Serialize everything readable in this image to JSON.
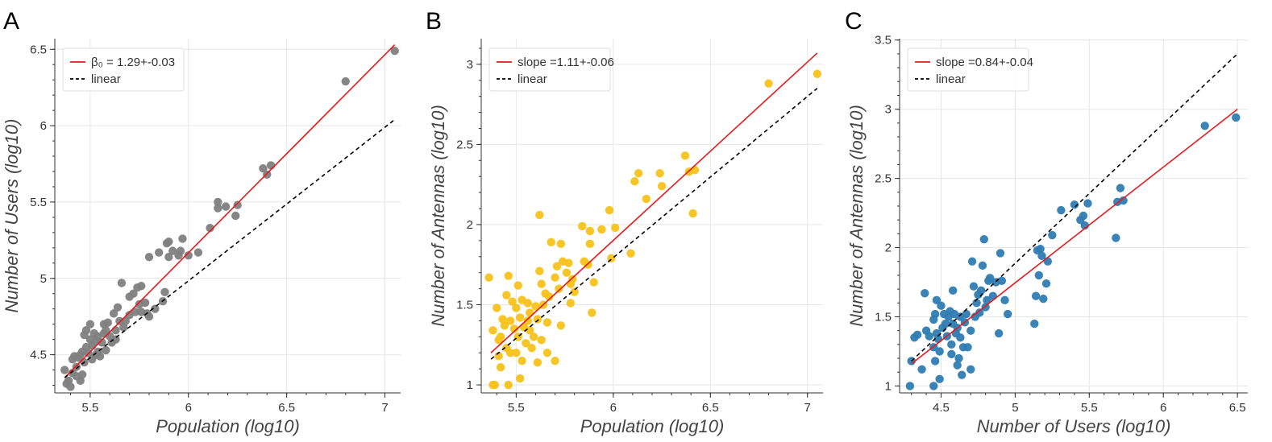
{
  "chart_data": [
    {
      "panel_label": "A",
      "type": "scatter",
      "xlabel": "Population (log10)",
      "ylabel": "Number of Users (log10)",
      "xlim": [
        5.32,
        7.08
      ],
      "ylim": [
        4.25,
        6.57
      ],
      "xticks": [
        5.5,
        6,
        6.5,
        7
      ],
      "xtick_labels": [
        "5.5",
        "6",
        "6.5",
        "7"
      ],
      "yticks": [
        4.5,
        5,
        5.5,
        6,
        6.5
      ],
      "ytick_labels": [
        "4.5",
        "5",
        "5.5",
        "6",
        "6.5"
      ],
      "point_color": "#7f7f7f",
      "legend": {
        "fit_label": "β₀ = 1.29+-0.03",
        "linear_label": "linear",
        "placement": "top-left"
      },
      "fit_line": {
        "color": "#e41a1c",
        "x": [
          5.37,
          7.05
        ],
        "y": [
          4.35,
          6.53
        ]
      },
      "linear_line": {
        "color": "#000000",
        "x": [
          5.37,
          7.05
        ],
        "y": [
          4.35,
          6.04
        ]
      },
      "points": [
        [
          5.37,
          4.4
        ],
        [
          5.38,
          4.31
        ],
        [
          5.39,
          4.33
        ],
        [
          5.4,
          4.29
        ],
        [
          5.41,
          4.47
        ],
        [
          5.41,
          4.38
        ],
        [
          5.42,
          4.49
        ],
        [
          5.43,
          4.42
        ],
        [
          5.43,
          4.36
        ],
        [
          5.44,
          4.48
        ],
        [
          5.45,
          4.5
        ],
        [
          5.45,
          4.33
        ],
        [
          5.46,
          4.37
        ],
        [
          5.46,
          4.52
        ],
        [
          5.47,
          4.63
        ],
        [
          5.47,
          4.45
        ],
        [
          5.48,
          4.66
        ],
        [
          5.48,
          4.55
        ],
        [
          5.49,
          4.51
        ],
        [
          5.5,
          4.7
        ],
        [
          5.5,
          4.6
        ],
        [
          5.51,
          4.47
        ],
        [
          5.51,
          4.56
        ],
        [
          5.52,
          4.64
        ],
        [
          5.53,
          4.5
        ],
        [
          5.53,
          4.59
        ],
        [
          5.54,
          4.62
        ],
        [
          5.54,
          4.52
        ],
        [
          5.55,
          4.49
        ],
        [
          5.56,
          4.58
        ],
        [
          5.57,
          4.7
        ],
        [
          5.57,
          4.64
        ],
        [
          5.58,
          4.53
        ],
        [
          5.58,
          4.66
        ],
        [
          5.59,
          4.71
        ],
        [
          5.6,
          4.62
        ],
        [
          5.61,
          4.58
        ],
        [
          5.62,
          4.77
        ],
        [
          5.63,
          4.66
        ],
        [
          5.63,
          4.6
        ],
        [
          5.64,
          4.81
        ],
        [
          5.65,
          4.72
        ],
        [
          5.66,
          4.97
        ],
        [
          5.67,
          4.68
        ],
        [
          5.68,
          4.72
        ],
        [
          5.7,
          4.76
        ],
        [
          5.7,
          4.88
        ],
        [
          5.72,
          4.9
        ],
        [
          5.73,
          4.78
        ],
        [
          5.74,
          4.94
        ],
        [
          5.75,
          4.83
        ],
        [
          5.76,
          4.95
        ],
        [
          5.76,
          4.78
        ],
        [
          5.78,
          4.84
        ],
        [
          5.79,
          4.77
        ],
        [
          5.8,
          4.75
        ],
        [
          5.8,
          5.14
        ],
        [
          5.83,
          4.8
        ],
        [
          5.85,
          5.17
        ],
        [
          5.87,
          4.85
        ],
        [
          5.88,
          4.91
        ],
        [
          5.89,
          5.23
        ],
        [
          5.9,
          5.14
        ],
        [
          5.9,
          5.24
        ],
        [
          5.92,
          5.18
        ],
        [
          5.95,
          5.15
        ],
        [
          5.96,
          5.18
        ],
        [
          5.97,
          5.26
        ],
        [
          6.0,
          5.15
        ],
        [
          6.05,
          5.17
        ],
        [
          6.11,
          5.33
        ],
        [
          6.15,
          5.46
        ],
        [
          6.15,
          5.5
        ],
        [
          6.19,
          5.47
        ],
        [
          6.24,
          5.41
        ],
        [
          6.25,
          5.48
        ],
        [
          6.38,
          5.72
        ],
        [
          6.4,
          5.68
        ],
        [
          6.42,
          5.74
        ],
        [
          6.8,
          6.29
        ],
        [
          7.05,
          6.49
        ]
      ]
    },
    {
      "panel_label": "B",
      "type": "scatter",
      "xlabel": "Population (log10)",
      "ylabel": "Number of Antennas (log10)",
      "xlim": [
        5.32,
        7.08
      ],
      "ylim": [
        0.95,
        3.16
      ],
      "xticks": [
        5.5,
        6,
        6.5,
        7
      ],
      "xtick_labels": [
        "5.5",
        "6",
        "6.5",
        "7"
      ],
      "yticks": [
        1,
        1.5,
        2,
        2.5,
        3
      ],
      "ytick_labels": [
        "1",
        "1.5",
        "2",
        "2.5",
        "3"
      ],
      "point_color": "#f8c21a",
      "legend": {
        "fit_label": "slope =1.11+-0.06",
        "linear_label": "linear",
        "placement": "top-left"
      },
      "fit_line": {
        "color": "#e41a1c",
        "x": [
          5.37,
          7.05
        ],
        "y": [
          1.2,
          3.07
        ]
      },
      "linear_line": {
        "color": "#000000",
        "x": [
          5.37,
          7.05
        ],
        "y": [
          1.16,
          2.85
        ]
      },
      "points": [
        [
          5.36,
          1.67
        ],
        [
          5.38,
          1.34
        ],
        [
          5.38,
          1.0
        ],
        [
          5.39,
          1.0
        ],
        [
          5.4,
          1.48
        ],
        [
          5.41,
          1.28
        ],
        [
          5.41,
          1.18
        ],
        [
          5.42,
          1.3
        ],
        [
          5.42,
          1.11
        ],
        [
          5.43,
          1.41
        ],
        [
          5.44,
          1.37
        ],
        [
          5.45,
          1.56
        ],
        [
          5.45,
          1.23
        ],
        [
          5.46,
          1.68
        ],
        [
          5.46,
          1.0
        ],
        [
          5.47,
          1.2
        ],
        [
          5.47,
          1.4
        ],
        [
          5.48,
          1.52
        ],
        [
          5.49,
          1.35
        ],
        [
          5.5,
          1.48
        ],
        [
          5.5,
          1.2
        ],
        [
          5.51,
          1.3
        ],
        [
          5.51,
          1.62
        ],
        [
          5.52,
          1.42
        ],
        [
          5.52,
          1.04
        ],
        [
          5.53,
          1.53
        ],
        [
          5.53,
          1.15
        ],
        [
          5.54,
          1.36
        ],
        [
          5.55,
          1.26
        ],
        [
          5.56,
          1.4
        ],
        [
          5.56,
          1.51
        ],
        [
          5.57,
          1.45
        ],
        [
          5.57,
          1.34
        ],
        [
          5.58,
          1.23
        ],
        [
          5.59,
          1.3
        ],
        [
          5.6,
          1.49
        ],
        [
          5.61,
          1.41
        ],
        [
          5.61,
          1.14
        ],
        [
          5.62,
          1.71
        ],
        [
          5.62,
          2.06
        ],
        [
          5.63,
          1.63
        ],
        [
          5.63,
          1.28
        ],
        [
          5.64,
          1.5
        ],
        [
          5.65,
          1.57
        ],
        [
          5.66,
          1.2
        ],
        [
          5.66,
          1.39
        ],
        [
          5.67,
          1.55
        ],
        [
          5.68,
          1.89
        ],
        [
          5.7,
          1.67
        ],
        [
          5.7,
          1.15
        ],
        [
          5.71,
          1.74
        ],
        [
          5.72,
          1.6
        ],
        [
          5.73,
          1.88
        ],
        [
          5.73,
          1.37
        ],
        [
          5.74,
          1.77
        ],
        [
          5.76,
          1.7
        ],
        [
          5.77,
          1.76
        ],
        [
          5.78,
          1.63
        ],
        [
          5.78,
          1.51
        ],
        [
          5.79,
          1.66
        ],
        [
          5.8,
          1.58
        ],
        [
          5.84,
          1.99
        ],
        [
          5.85,
          1.77
        ],
        [
          5.87,
          1.75
        ],
        [
          5.88,
          1.96
        ],
        [
          5.88,
          1.88
        ],
        [
          5.89,
          1.45
        ],
        [
          5.9,
          1.64
        ],
        [
          5.94,
          1.97
        ],
        [
          5.98,
          2.09
        ],
        [
          5.99,
          1.79
        ],
        [
          6.01,
          1.98
        ],
        [
          6.09,
          1.82
        ],
        [
          6.11,
          2.27
        ],
        [
          6.13,
          2.32
        ],
        [
          6.17,
          2.16
        ],
        [
          6.24,
          2.32
        ],
        [
          6.25,
          2.24
        ],
        [
          6.37,
          2.43
        ],
        [
          6.39,
          2.33
        ],
        [
          6.41,
          2.07
        ],
        [
          6.42,
          2.34
        ],
        [
          6.8,
          2.88
        ],
        [
          7.05,
          2.94
        ]
      ]
    },
    {
      "panel_label": "C",
      "type": "scatter",
      "xlabel": "Number of Users (log10)",
      "ylabel": "Number of Antennas (log10)",
      "xlim": [
        4.22,
        6.57
      ],
      "ylim": [
        0.95,
        3.51
      ],
      "xticks": [
        4.5,
        5,
        5.5,
        6,
        6.5
      ],
      "xtick_labels": [
        "4.5",
        "5",
        "5.5",
        "6",
        "6.5"
      ],
      "yticks": [
        1,
        1.5,
        2,
        2.5,
        3,
        3.5
      ],
      "ytick_labels": [
        "1",
        "1.5",
        "2",
        "2.5",
        "3",
        "3.5"
      ],
      "point_color": "#2f7cb3",
      "legend": {
        "fit_label": "slope =0.84+-0.04",
        "linear_label": "linear",
        "placement": "top-left"
      },
      "fit_line": {
        "color": "#e41a1c",
        "x": [
          4.3,
          6.5
        ],
        "y": [
          1.16,
          3.0
        ]
      },
      "linear_line": {
        "color": "#000000",
        "x": [
          4.3,
          6.5
        ],
        "y": [
          1.18,
          3.4
        ]
      },
      "points": [
        [
          4.29,
          1.0
        ],
        [
          4.3,
          1.18
        ],
        [
          4.32,
          1.35
        ],
        [
          4.34,
          1.37
        ],
        [
          4.37,
          1.12
        ],
        [
          4.39,
          1.67
        ],
        [
          4.4,
          1.4
        ],
        [
          4.42,
          1.36
        ],
        [
          4.45,
          1.28
        ],
        [
          4.45,
          1.0
        ],
        [
          4.45,
          1.48
        ],
        [
          4.46,
          1.18
        ],
        [
          4.46,
          1.52
        ],
        [
          4.47,
          1.62
        ],
        [
          4.47,
          1.38
        ],
        [
          4.48,
          1.34
        ],
        [
          4.49,
          1.25
        ],
        [
          4.49,
          1.05
        ],
        [
          4.5,
          1.58
        ],
        [
          4.51,
          1.42
        ],
        [
          4.52,
          1.52
        ],
        [
          4.53,
          1.45
        ],
        [
          4.54,
          1.36
        ],
        [
          4.55,
          1.5
        ],
        [
          4.56,
          1.54
        ],
        [
          4.57,
          1.23
        ],
        [
          4.57,
          1.3
        ],
        [
          4.58,
          1.69
        ],
        [
          4.58,
          1.45
        ],
        [
          4.59,
          1.52
        ],
        [
          4.6,
          1.38
        ],
        [
          4.61,
          1.15
        ],
        [
          4.61,
          1.42
        ],
        [
          4.62,
          1.2
        ],
        [
          4.63,
          1.35
        ],
        [
          4.63,
          1.5
        ],
        [
          4.64,
          1.08
        ],
        [
          4.65,
          1.28
        ],
        [
          4.66,
          1.46
        ],
        [
          4.67,
          1.52
        ],
        [
          4.68,
          1.28
        ],
        [
          4.7,
          1.12
        ],
        [
          4.7,
          1.4
        ],
        [
          4.71,
          1.9
        ],
        [
          4.72,
          1.72
        ],
        [
          4.73,
          1.5
        ],
        [
          4.74,
          1.6
        ],
        [
          4.75,
          1.66
        ],
        [
          4.76,
          1.53
        ],
        [
          4.77,
          1.69
        ],
        [
          4.78,
          1.87
        ],
        [
          4.79,
          2.06
        ],
        [
          4.8,
          1.57
        ],
        [
          4.81,
          1.62
        ],
        [
          4.82,
          1.76
        ],
        [
          4.83,
          1.78
        ],
        [
          4.85,
          1.65
        ],
        [
          4.87,
          1.75
        ],
        [
          4.89,
          1.38
        ],
        [
          4.9,
          1.96
        ],
        [
          4.91,
          1.76
        ],
        [
          4.93,
          1.62
        ],
        [
          4.95,
          1.52
        ],
        [
          5.13,
          1.45
        ],
        [
          5.14,
          1.65
        ],
        [
          5.15,
          1.98
        ],
        [
          5.16,
          1.8
        ],
        [
          5.17,
          1.99
        ],
        [
          5.18,
          1.94
        ],
        [
          5.19,
          1.63
        ],
        [
          5.21,
          1.74
        ],
        [
          5.22,
          1.9
        ],
        [
          5.25,
          2.09
        ],
        [
          5.31,
          2.27
        ],
        [
          5.4,
          2.31
        ],
        [
          5.44,
          2.2
        ],
        [
          5.46,
          2.23
        ],
        [
          5.47,
          2.16
        ],
        [
          5.49,
          2.32
        ],
        [
          5.68,
          2.07
        ],
        [
          5.69,
          2.33
        ],
        [
          5.71,
          2.43
        ],
        [
          5.73,
          2.34
        ],
        [
          6.28,
          2.88
        ],
        [
          6.49,
          2.94
        ]
      ]
    }
  ]
}
